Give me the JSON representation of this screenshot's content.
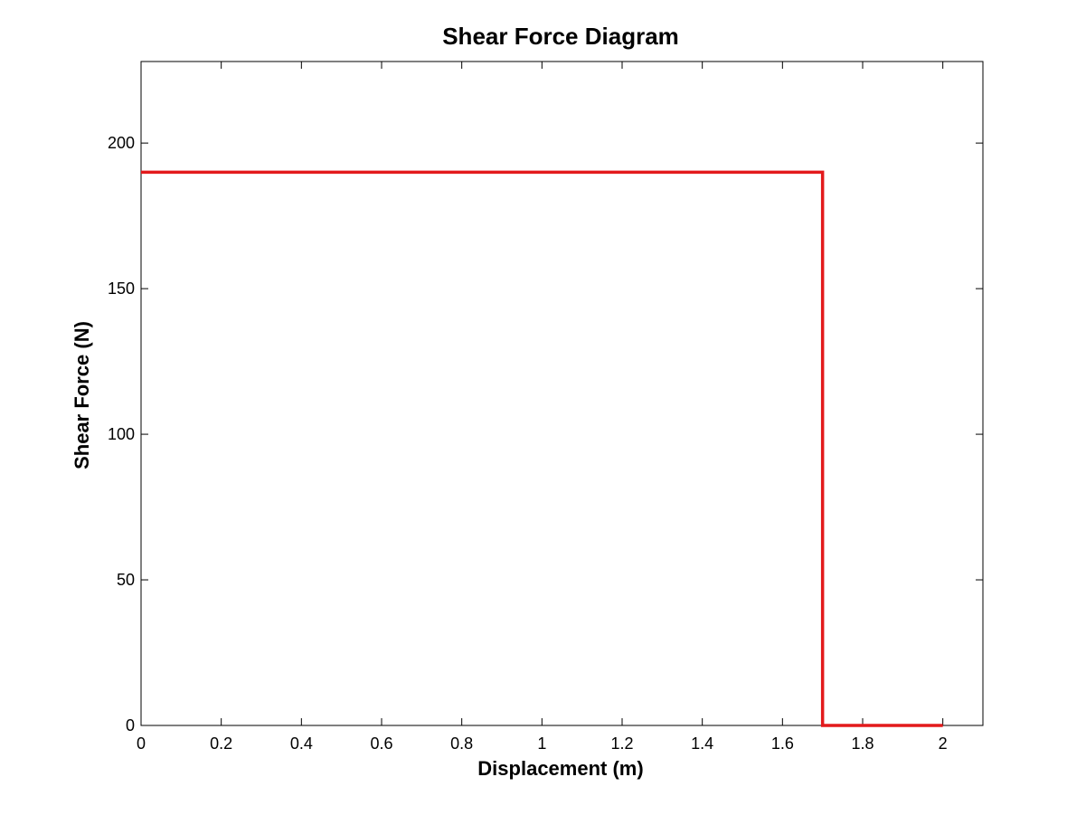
{
  "chart_data": {
    "type": "line",
    "title": "Shear Force Diagram",
    "xlabel": "Displacement (m)",
    "ylabel": "Shear Force (N)",
    "xlim": [
      0,
      2.1
    ],
    "ylim": [
      0,
      228
    ],
    "xticks": [
      0,
      0.2,
      0.4,
      0.6,
      0.8,
      1,
      1.2,
      1.4,
      1.6,
      1.8,
      2
    ],
    "xtick_labels": [
      "0",
      "0.2",
      "0.4",
      "0.6",
      "0.8",
      "1",
      "1.2",
      "1.4",
      "1.6",
      "1.8",
      "2"
    ],
    "yticks": [
      0,
      50,
      100,
      150,
      200
    ],
    "ytick_labels": [
      "0",
      "50",
      "100",
      "150",
      "200"
    ],
    "grid": false,
    "legend": "none",
    "series": [
      {
        "color": "#e31a1c",
        "x": [
          0,
          1.7,
          1.7,
          2
        ],
        "y": [
          190,
          190,
          0,
          0
        ]
      }
    ]
  }
}
